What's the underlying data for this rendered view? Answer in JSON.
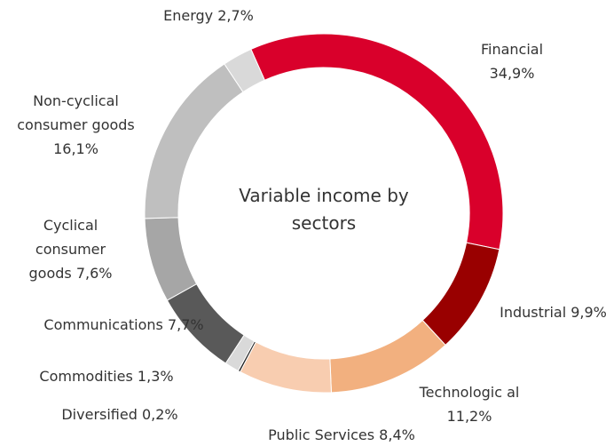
{
  "chart_data": {
    "type": "donut",
    "title": "Variable income by sectors",
    "categories": [
      "Financial",
      "Industrial",
      "Technologic al",
      "Public Services",
      "Diversified",
      "Commodities",
      "Communications",
      "Cyclical consumer goods",
      "Non-cyclical consumer goods",
      "Energy"
    ],
    "values": [
      34.9,
      9.9,
      11.2,
      8.4,
      0.2,
      1.3,
      7.7,
      7.6,
      16.1,
      2.7
    ],
    "value_labels": [
      "34,9%",
      "9,9%",
      "11,2%",
      "8,4%",
      "0,2%",
      "1,3%",
      "7,7%",
      "7,6%",
      "16,1%",
      "2,7%"
    ],
    "colors": [
      "#d9002b",
      "#990000",
      "#f2b07f",
      "#f8cdb0",
      "#222222",
      "#d9d9d9",
      "#595959",
      "#a6a6a6",
      "#bfbfbf",
      "#d9d9d9"
    ]
  }
}
